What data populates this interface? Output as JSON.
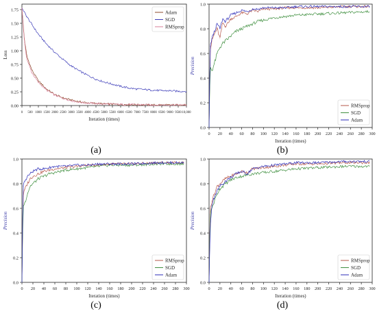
{
  "chart_data": [
    {
      "id": "a",
      "panel_label": "(a)",
      "type": "line",
      "xlabel": "Iteration (times)",
      "ylabel": "Loss",
      "xlim": [
        0,
        10000
      ],
      "ylim": [
        0,
        1.85
      ],
      "xticks": [
        0,
        500,
        1000,
        1500,
        2000,
        2500,
        3000,
        3500,
        4000,
        4500,
        5000,
        5500,
        6000,
        6500,
        7000,
        7500,
        8000,
        8500,
        9000,
        9500,
        10000
      ],
      "xtick_labels": [
        "0",
        "500",
        "1000",
        "1500",
        "2000",
        "2500",
        "3000",
        "3500",
        "4000",
        "4500",
        "5000",
        "5500",
        "6000",
        "6500",
        "7000",
        "7500",
        "8000",
        "8500",
        "9000",
        "9500",
        "10,000"
      ],
      "yticks": [
        0.0,
        0.25,
        0.5,
        0.75,
        1.0,
        1.25,
        1.5,
        1.75
      ],
      "ytick_labels": [
        "0.00",
        "0.25",
        "0.50",
        "0.75",
        "1.00",
        "1.25",
        "1.50",
        "1.75"
      ],
      "grid": false,
      "legend": "top-right",
      "series": [
        {
          "name": "Adam",
          "color": "#8b4a2b",
          "x": [
            0,
            150,
            300,
            600,
            1000,
            1500,
            2000,
            2500,
            3000,
            3500,
            4000,
            5000,
            6000,
            7000,
            8000,
            9000,
            10000
          ],
          "y": [
            1.78,
            1.2,
            0.9,
            0.65,
            0.45,
            0.3,
            0.2,
            0.14,
            0.1,
            0.07,
            0.05,
            0.03,
            0.02,
            0.015,
            0.01,
            0.01,
            0.01
          ]
        },
        {
          "name": "SGD",
          "color": "#3b3bb8",
          "x": [
            0,
            300,
            600,
            1000,
            1500,
            2000,
            2500,
            3000,
            3500,
            4000,
            4500,
            5000,
            5500,
            6000,
            6500,
            7000,
            7500,
            8000,
            8500,
            9000,
            9500,
            10000
          ],
          "y": [
            1.78,
            1.62,
            1.48,
            1.3,
            1.12,
            0.97,
            0.84,
            0.72,
            0.63,
            0.55,
            0.48,
            0.43,
            0.39,
            0.35,
            0.32,
            0.3,
            0.29,
            0.28,
            0.27,
            0.27,
            0.26,
            0.26
          ]
        },
        {
          "name": "RMSprop",
          "color": "#d87f9a",
          "x": [
            0,
            150,
            300,
            600,
            1000,
            1500,
            2000,
            2500,
            3000,
            3500,
            4000,
            5000,
            6000,
            7000,
            8000,
            9000,
            10000
          ],
          "y": [
            1.78,
            1.15,
            0.85,
            0.6,
            0.42,
            0.28,
            0.19,
            0.13,
            0.09,
            0.06,
            0.045,
            0.03,
            0.02,
            0.015,
            0.01,
            0.01,
            0.01
          ]
        }
      ]
    },
    {
      "id": "b",
      "panel_label": "(b)",
      "type": "line",
      "xlabel": "Iteration (times)",
      "ylabel": "Precision",
      "xlim": [
        0,
        300
      ],
      "ylim": [
        0,
        1.0
      ],
      "xticks": [
        0,
        20,
        40,
        60,
        80,
        100,
        120,
        140,
        160,
        180,
        200,
        220,
        240,
        260,
        280,
        300
      ],
      "yticks": [
        0.0,
        0.2,
        0.4,
        0.6,
        0.8,
        1.0
      ],
      "ytick_labels": [
        "0.0",
        "0.2",
        "0.4",
        "0.6",
        "0.8",
        "1.0"
      ],
      "grid": false,
      "legend": "bottom-right",
      "series": [
        {
          "name": "RMSprop",
          "color": "#b5574a",
          "x": [
            0,
            2,
            5,
            10,
            15,
            20,
            25,
            30,
            40,
            50,
            60,
            70,
            80,
            90,
            100,
            120,
            140,
            160,
            200,
            250,
            295
          ],
          "y": [
            0,
            0.62,
            0.7,
            0.76,
            0.8,
            0.72,
            0.85,
            0.82,
            0.88,
            0.9,
            0.93,
            0.92,
            0.95,
            0.94,
            0.96,
            0.96,
            0.97,
            0.97,
            0.97,
            0.98,
            0.98
          ]
        },
        {
          "name": "SGD",
          "color": "#3f8f3f",
          "x": [
            0,
            2,
            5,
            10,
            15,
            20,
            25,
            30,
            40,
            50,
            60,
            70,
            80,
            90,
            100,
            120,
            140,
            160,
            200,
            250,
            295
          ],
          "y": [
            0,
            0.5,
            0.46,
            0.52,
            0.6,
            0.65,
            0.68,
            0.7,
            0.74,
            0.78,
            0.8,
            0.82,
            0.84,
            0.86,
            0.87,
            0.89,
            0.9,
            0.91,
            0.92,
            0.93,
            0.94
          ]
        },
        {
          "name": "Adam",
          "color": "#2b2bb8",
          "x": [
            0,
            2,
            5,
            10,
            15,
            20,
            25,
            30,
            40,
            50,
            60,
            70,
            80,
            90,
            100,
            120,
            140,
            160,
            200,
            250,
            295
          ],
          "y": [
            0,
            0.66,
            0.72,
            0.78,
            0.84,
            0.8,
            0.88,
            0.86,
            0.91,
            0.93,
            0.95,
            0.94,
            0.96,
            0.96,
            0.97,
            0.97,
            0.97,
            0.98,
            0.98,
            0.98,
            0.98
          ]
        }
      ]
    },
    {
      "id": "c",
      "panel_label": "(c)",
      "type": "line",
      "xlabel": "Iteration (times)",
      "ylabel": "Precision",
      "xlim": [
        0,
        300
      ],
      "ylim": [
        0,
        1.0
      ],
      "xticks": [
        0,
        20,
        40,
        60,
        80,
        100,
        120,
        140,
        160,
        180,
        200,
        220,
        240,
        260,
        280,
        300
      ],
      "yticks": [
        0.0,
        0.2,
        0.4,
        0.6,
        0.8,
        1.0
      ],
      "ytick_labels": [
        "0.0",
        "0.2",
        "0.4",
        "0.6",
        "0.8",
        "1.0"
      ],
      "grid": false,
      "legend": "bottom-right",
      "series": [
        {
          "name": "RMSprop",
          "color": "#b5574a",
          "x": [
            0,
            2,
            5,
            10,
            15,
            20,
            30,
            40,
            50,
            60,
            80,
            100,
            120,
            140,
            160,
            200,
            250,
            295
          ],
          "y": [
            0,
            0.7,
            0.75,
            0.8,
            0.84,
            0.86,
            0.88,
            0.9,
            0.91,
            0.92,
            0.93,
            0.94,
            0.95,
            0.95,
            0.96,
            0.96,
            0.97,
            0.97
          ]
        },
        {
          "name": "SGD",
          "color": "#3f8f3f",
          "x": [
            0,
            2,
            5,
            10,
            15,
            20,
            30,
            40,
            50,
            60,
            80,
            100,
            120,
            140,
            160,
            200,
            250,
            295
          ],
          "y": [
            0,
            0.62,
            0.64,
            0.72,
            0.78,
            0.8,
            0.84,
            0.86,
            0.88,
            0.89,
            0.91,
            0.92,
            0.93,
            0.94,
            0.95,
            0.95,
            0.96,
            0.96
          ]
        },
        {
          "name": "Adam",
          "color": "#2b2bb8",
          "x": [
            0,
            2,
            5,
            10,
            15,
            20,
            30,
            40,
            50,
            60,
            80,
            100,
            120,
            140,
            160,
            200,
            250,
            295
          ],
          "y": [
            0,
            0.78,
            0.82,
            0.86,
            0.88,
            0.9,
            0.92,
            0.92,
            0.93,
            0.94,
            0.94,
            0.95,
            0.95,
            0.96,
            0.96,
            0.96,
            0.97,
            0.97
          ]
        }
      ]
    },
    {
      "id": "d",
      "panel_label": "(d)",
      "type": "line",
      "xlabel": "Iteration (times)",
      "ylabel": "Precision",
      "xlim": [
        0,
        300
      ],
      "ylim": [
        0,
        1.0
      ],
      "xticks": [
        0,
        20,
        40,
        60,
        80,
        100,
        120,
        140,
        160,
        180,
        200,
        220,
        240,
        260,
        280,
        300
      ],
      "yticks": [
        0.0,
        0.2,
        0.4,
        0.6,
        0.8,
        1.0
      ],
      "ytick_labels": [
        "0.0",
        "0.2",
        "0.4",
        "0.6",
        "0.8",
        "1.0"
      ],
      "grid": false,
      "legend": "bottom-right",
      "series": [
        {
          "name": "RMSprop",
          "color": "#b5574a",
          "x": [
            0,
            2,
            5,
            10,
            15,
            20,
            30,
            40,
            50,
            60,
            70,
            80,
            100,
            120,
            140,
            160,
            200,
            250,
            295
          ],
          "y": [
            0,
            0.6,
            0.66,
            0.72,
            0.78,
            0.8,
            0.84,
            0.86,
            0.88,
            0.9,
            0.89,
            0.92,
            0.93,
            0.94,
            0.95,
            0.96,
            0.96,
            0.97,
            0.97
          ]
        },
        {
          "name": "SGD",
          "color": "#3f8f3f",
          "x": [
            0,
            2,
            5,
            10,
            15,
            20,
            30,
            40,
            50,
            60,
            70,
            80,
            100,
            120,
            140,
            160,
            200,
            250,
            295
          ],
          "y": [
            0,
            0.55,
            0.6,
            0.66,
            0.72,
            0.76,
            0.8,
            0.83,
            0.85,
            0.86,
            0.87,
            0.88,
            0.89,
            0.9,
            0.91,
            0.92,
            0.93,
            0.94,
            0.94
          ]
        },
        {
          "name": "Adam",
          "color": "#2b2bb8",
          "x": [
            0,
            2,
            5,
            10,
            15,
            20,
            30,
            40,
            50,
            60,
            70,
            80,
            100,
            120,
            140,
            160,
            200,
            250,
            295
          ],
          "y": [
            0,
            0.45,
            0.62,
            0.7,
            0.74,
            0.78,
            0.82,
            0.85,
            0.88,
            0.9,
            0.88,
            0.92,
            0.94,
            0.95,
            0.96,
            0.97,
            0.97,
            0.98,
            0.98
          ]
        }
      ]
    }
  ]
}
